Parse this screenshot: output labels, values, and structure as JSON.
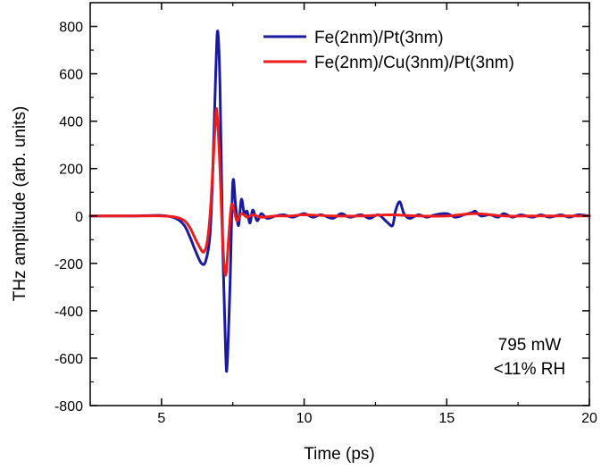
{
  "chart_data": {
    "type": "line",
    "title": "",
    "xlabel": "Time (ps)",
    "ylabel": "THz amplitude (arb. units)",
    "xlim": [
      2.5,
      20
    ],
    "ylim": [
      -800,
      900
    ],
    "xticks": [
      5,
      10,
      15,
      20
    ],
    "yticks": [
      -800,
      -600,
      -400,
      -200,
      0,
      200,
      400,
      600,
      800
    ],
    "grid": false,
    "legend_position": "top-right",
    "annotation_lines": [
      "795 mW",
      "<11% RH"
    ],
    "series": [
      {
        "name": "Fe(2nm)/Pt(3nm)",
        "color": "#1a1aa0",
        "x": [
          2.5,
          4.0,
          5.0,
          5.5,
          5.8,
          6.0,
          6.2,
          6.4,
          6.55,
          6.7,
          6.8,
          6.9,
          6.97,
          7.05,
          7.15,
          7.25,
          7.3,
          7.4,
          7.5,
          7.6,
          7.7,
          7.8,
          7.9,
          8.0,
          8.1,
          8.2,
          8.35,
          8.5,
          8.7,
          9.0,
          9.3,
          9.6,
          10.0,
          10.3,
          10.6,
          11.0,
          11.3,
          11.6,
          12.0,
          12.3,
          12.6,
          12.9,
          13.1,
          13.2,
          13.35,
          13.5,
          13.7,
          14.0,
          14.3,
          14.6,
          15.0,
          15.3,
          15.6,
          15.9,
          16.0,
          16.2,
          16.5,
          16.8,
          17.0,
          17.3,
          17.6,
          18.0,
          18.3,
          18.6,
          19.0,
          19.3,
          19.6,
          20.0
        ],
        "values": [
          0,
          0,
          2,
          -10,
          -40,
          -90,
          -150,
          -200,
          -190,
          -80,
          200,
          600,
          780,
          550,
          -150,
          -580,
          -630,
          -300,
          140,
          40,
          -40,
          70,
          10,
          20,
          -30,
          25,
          -20,
          10,
          -10,
          0,
          5,
          -5,
          10,
          -5,
          5,
          -10,
          10,
          -5,
          5,
          -10,
          5,
          -25,
          -40,
          20,
          60,
          10,
          -10,
          5,
          -5,
          5,
          10,
          -5,
          5,
          15,
          20,
          0,
          5,
          -5,
          10,
          -5,
          5,
          -5,
          5,
          -5,
          5,
          -5,
          5,
          0
        ]
      },
      {
        "name": "Fe(2nm)/Cu(3nm)/Pt(3nm)",
        "color": "#ee1c1c",
        "x": [
          2.5,
          4.0,
          5.0,
          5.5,
          5.8,
          6.0,
          6.2,
          6.4,
          6.5,
          6.6,
          6.7,
          6.8,
          6.9,
          6.95,
          7.05,
          7.15,
          7.25,
          7.35,
          7.45,
          7.55,
          7.65,
          7.8,
          8.0,
          8.2,
          8.5,
          9.0,
          9.5,
          10.0,
          11.0,
          12.0,
          13.0,
          14.0,
          15.0,
          16.0,
          17.0,
          18.0,
          19.0,
          20.0
        ],
        "values": [
          0,
          0,
          0,
          -5,
          -20,
          -50,
          -100,
          -145,
          -150,
          -110,
          0,
          200,
          420,
          430,
          200,
          -120,
          -250,
          -100,
          45,
          20,
          -20,
          10,
          -5,
          5,
          -5,
          0,
          0,
          5,
          0,
          0,
          5,
          0,
          0,
          10,
          0,
          0,
          0,
          0
        ]
      }
    ]
  }
}
